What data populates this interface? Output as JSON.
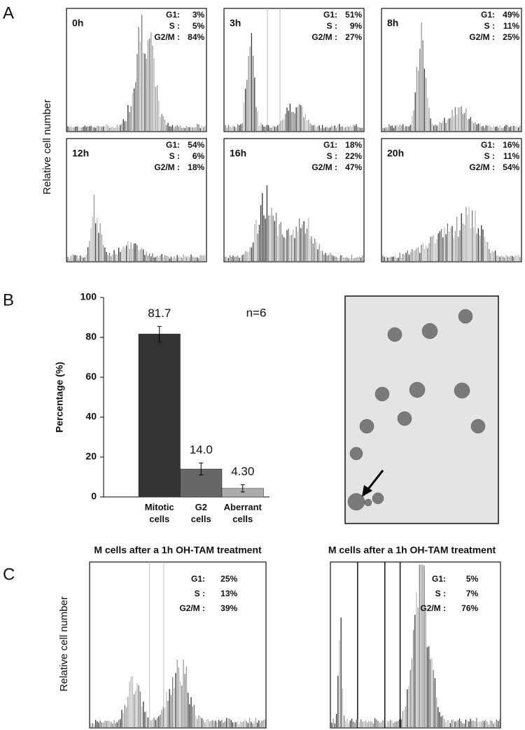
{
  "panel_a": {
    "label": "A",
    "y_label": "Relative cell number",
    "plots": [
      {
        "time": "0h",
        "g1_label": "G1:",
        "g1": "3%",
        "s_label": "S :",
        "s": "5%",
        "g2m_label": "G2/M :",
        "g2m": "84%"
      },
      {
        "time": "3h",
        "g1_label": "G1:",
        "g1": "51%",
        "s_label": "S :",
        "s": "9%",
        "g2m_label": "G2/M :",
        "g2m": "27%"
      },
      {
        "time": "8h",
        "g1_label": "G1:",
        "g1": "49%",
        "s_label": "S :",
        "s": "11%",
        "g2m_label": "G2/M :",
        "g2m": "25%"
      },
      {
        "time": "12h",
        "g1_label": "G1:",
        "g1": "54%",
        "s_label": "S :",
        "s": "6%",
        "g2m_label": "G2/M :",
        "g2m": "18%"
      },
      {
        "time": "16h",
        "g1_label": "G1:",
        "g1": "18%",
        "s_label": "S :",
        "s": "22%",
        "g2m_label": "G2/M :",
        "g2m": "47%"
      },
      {
        "time": "20h",
        "g1_label": "G1:",
        "g1": "16%",
        "s_label": "S :",
        "s": "11%",
        "g2m_label": "G2/M :",
        "g2m": "54%"
      }
    ]
  },
  "panel_b": {
    "label": "B"
  },
  "chart_data": {
    "type": "bar",
    "y_label": "Percentage (%)",
    "annotation": "n=6",
    "categories": [
      "Mitotic cells",
      "G2 cells",
      "Aberrant cells"
    ],
    "values": [
      81.7,
      14.0,
      4.3
    ],
    "value_labels": [
      "81.7",
      "14.0",
      "4.30"
    ],
    "errors": [
      3.8,
      3.0,
      1.8
    ],
    "colors": [
      "#333333",
      "#666666",
      "#aaaaaa"
    ],
    "ylim": [
      0,
      100
    ],
    "yticks": [
      0,
      20,
      40,
      60,
      80,
      100
    ]
  },
  "panel_c": {
    "label": "C",
    "y_label": "Relative cell number",
    "plots": [
      {
        "title": "M cells after a 1h OH-TAM treatment",
        "g1_label": "G1:",
        "g1": "25%",
        "s_label": "S :",
        "s": "13%",
        "g2m_label": "G2/M :",
        "g2m": "39%"
      },
      {
        "title": "M cells after a 1h OH-TAM treatment",
        "g1_label": "G1:",
        "g1": "5%",
        "s_label": "S :",
        "s": "7%",
        "g2m_label": "G2/M :",
        "g2m": "76%"
      }
    ]
  }
}
